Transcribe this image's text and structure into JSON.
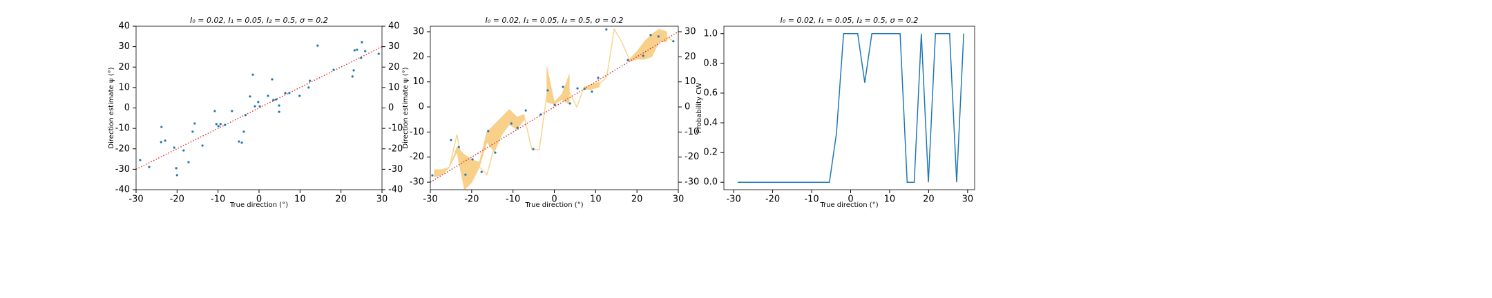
{
  "chart_data": [
    {
      "type": "scatter",
      "title": "I₀ = 0.02, I₁ = 0.05, I₂ = 0.5, σ = 0.2",
      "xlabel": "True direction (°)",
      "ylabel": "Direction estimate ψ (°)",
      "x": [
        -29,
        -26.8,
        -23.8,
        -23.9,
        -22.9,
        -20.7,
        -20.2,
        -20,
        -18.4,
        -17.2,
        -16.2,
        -15.7,
        -13.8,
        -10.8,
        -10.4,
        -9.9,
        -9.4,
        -8.3,
        -6.6,
        -4.9,
        -4.2,
        -3.7,
        -3.3,
        -2.2,
        -1.5,
        -1,
        -0.2,
        0.2,
        2.2,
        3.2,
        3.5,
        4.2,
        4.9,
        4.9,
        6.4,
        7.4,
        9.9,
        12.1,
        12.4,
        14.3,
        18.2,
        22.8,
        23.3,
        23.1,
        23.9,
        24.9,
        25.1,
        25.9,
        29.2
      ],
      "values": [
        -25.5,
        -28.9,
        -9.3,
        -16.7,
        -16,
        -19.4,
        -29.5,
        -32.9,
        -20.8,
        -26.5,
        -11.6,
        -7.6,
        -18.4,
        -1.5,
        -7.9,
        -8.9,
        -7.9,
        -8.3,
        -1.5,
        -16.4,
        -17,
        -11.6,
        -3.5,
        5.6,
        16.3,
        0.8,
        2.9,
        0.8,
        5.9,
        14,
        3.9,
        4.2,
        1.2,
        -1.9,
        7.3,
        7.3,
        5.9,
        10,
        13.3,
        30.5,
        18.7,
        15.4,
        28.2,
        18.4,
        28.5,
        24.5,
        32.2,
        27.8,
        26.5
      ],
      "color": "#1f77b4",
      "reference_x": [
        -30,
        30
      ],
      "reference_y": [
        -30,
        30
      ],
      "reference_color": "#e03030",
      "xlim": [
        -30,
        30
      ],
      "xticks": [
        -30,
        -20,
        -10,
        0,
        10,
        20,
        30
      ],
      "ylim": [
        -40,
        40
      ],
      "yticks": [
        -40,
        -30,
        -20,
        -10,
        0,
        10,
        20,
        30,
        40
      ],
      "y2lim": [
        -40,
        40
      ],
      "y2ticks": [
        -40,
        -30,
        -20,
        -10,
        0,
        10,
        20,
        30,
        40
      ]
    },
    {
      "type": "scatter",
      "title": "I₀ = 0.02, I₁ = 0.05, I₂ = 0.5, σ = 0.2",
      "xlabel": "True direction (°)",
      "ylabel": "Direction estimate ψ (°)",
      "x": [
        -29.5,
        -25,
        -23.1,
        -21.5,
        -19.8,
        -17.6,
        -16,
        -14.3,
        -10.4,
        -8.9,
        -6.9,
        -5.1,
        -3.3,
        -1.6,
        0.1,
        2.1,
        3.8,
        5.6,
        7.3,
        9.1,
        10.6,
        12.6,
        17.8,
        21.5,
        23.3,
        25.2,
        28.8
      ],
      "values": [
        -27.3,
        -13.2,
        -16,
        -27,
        -20.9,
        -25.9,
        -9.6,
        -18.2,
        -6.6,
        -8.3,
        -1.4,
        -16.8,
        -3,
        6.6,
        0.8,
        8,
        1.4,
        7.4,
        7.2,
        6.1,
        11.6,
        30.9,
        18.7,
        20.4,
        28.7,
        28.1,
        26.2
      ],
      "color": "#1f77b4",
      "grid_x": [
        -29,
        -27.19,
        -25.38,
        -23.56,
        -21.75,
        -19.94,
        -18.13,
        -16.31,
        -14.5,
        -12.69,
        -10.88,
        -9.06,
        -7.25,
        -5.44,
        -3.63,
        -1.81,
        0,
        1.81,
        3.63,
        5.44,
        7.25,
        9.06,
        10.88,
        12.69,
        14.5,
        16.31,
        18.13,
        19.94,
        21.75,
        23.56,
        25.38,
        27.19,
        29
      ],
      "line_values": [
        -27,
        -26,
        -24,
        -11,
        -27,
        -22,
        -24,
        -27,
        -16,
        -10,
        -6,
        -9,
        -4,
        -17,
        -17,
        5,
        1,
        4,
        6,
        0,
        8,
        8,
        9,
        12,
        31,
        26,
        19,
        21,
        22,
        20,
        31,
        28,
        26
      ],
      "band_lower": [
        -28,
        -27,
        -24,
        -18,
        -33,
        -30,
        -24,
        -14,
        -18,
        -11,
        -7,
        -9,
        -5,
        null,
        null,
        2,
        1,
        3,
        1,
        null,
        7,
        7,
        8,
        null,
        null,
        null,
        18,
        19,
        19,
        20,
        26,
        26,
        null
      ],
      "band_upper": [
        -25,
        -25,
        -24,
        -16,
        -19,
        -21,
        -22,
        -10,
        -7,
        -4,
        -1,
        -4,
        -3,
        null,
        null,
        16,
        2,
        5,
        13,
        null,
        8,
        9,
        10,
        null,
        null,
        null,
        19,
        22,
        26,
        29,
        31,
        30,
        null
      ],
      "line_color": "#f6d58e",
      "band_color": "#f8d089",
      "reference_x": [
        -30,
        30
      ],
      "reference_y": [
        -30,
        30
      ],
      "reference_color": "#e03030",
      "xlim": [
        -30,
        30
      ],
      "xticks": [
        -30,
        -20,
        -10,
        0,
        10,
        20,
        30
      ],
      "ylim": [
        -33,
        32.2
      ],
      "yticks": [
        -30,
        -20,
        -10,
        0,
        10,
        20,
        30
      ],
      "y2lim": [
        -33,
        32.2
      ],
      "y2ticks": [
        -30,
        -20,
        -10,
        0,
        10,
        20,
        30
      ]
    },
    {
      "type": "line",
      "title": "I₀ = 0.02, I₁ = 0.05, I₂ = 0.5, σ = 0.2",
      "xlabel": "True direction (°)",
      "ylabel": "Probability CW",
      "x": [
        -29,
        -27.19,
        -25.38,
        -23.56,
        -21.75,
        -19.94,
        -18.13,
        -16.31,
        -14.5,
        -12.69,
        -10.88,
        -9.06,
        -7.25,
        -5.44,
        -3.63,
        -1.81,
        0,
        1.81,
        3.63,
        5.44,
        7.25,
        9.06,
        10.88,
        12.69,
        14.5,
        16.31,
        18.13,
        19.94,
        21.75,
        23.56,
        25.38,
        27.19,
        29
      ],
      "values": [
        0,
        0,
        0,
        0,
        0,
        0,
        0,
        0,
        0,
        0,
        0,
        0,
        0,
        0,
        0.33,
        1,
        1,
        1,
        0.67,
        1,
        1,
        1,
        1,
        1,
        0,
        0,
        1,
        0,
        1,
        1,
        1,
        0,
        1
      ],
      "color": "#1f77b4",
      "xlim": [
        -32.5,
        31.8
      ],
      "xticks": [
        -30,
        -20,
        -10,
        0,
        10,
        20,
        30
      ],
      "ylim": [
        -0.05,
        1.05
      ],
      "yticks": [
        {
          "value": 0,
          "label": "0.0"
        },
        0.2,
        0.4,
        0.6,
        0.8,
        {
          "value": 1,
          "label": "1.0"
        }
      ]
    }
  ]
}
